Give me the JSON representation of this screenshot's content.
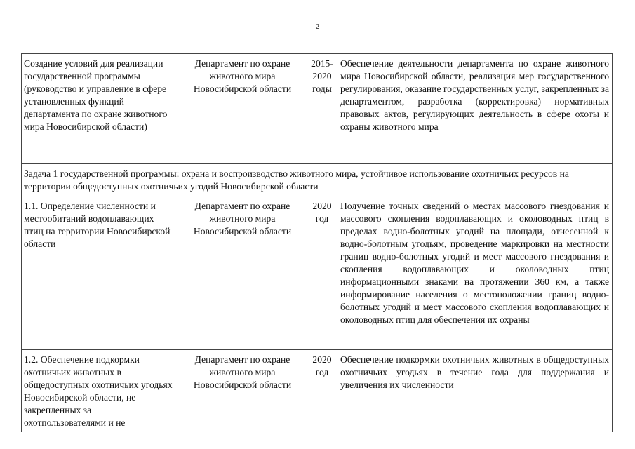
{
  "page_number": "2",
  "rows": [
    {
      "type": "item",
      "name": "Создание условий для реализации государственной программы (руководство и управление в сфере установленных функций департамента по охране животного мира Новосибирской области)",
      "executor": "Департамент по охране животного мира Новосибирской области",
      "period": "2015-2020 годы",
      "result": "Обеспечение деятельности департамента по охране животного мира Новосибирской области, реализация мер государственного регулирования, оказание государственных услуг, закрепленных за департаментом, разработка (корректировка) нормативных правовых актов, регулирующих деятельность в сфере охоты и охраны животного мира"
    },
    {
      "type": "task",
      "text": "Задача 1 государственной программы: охрана и воспроизводство животного мира, устойчивое использование охотничьих ресурсов на территории общедоступных охотничьих угодий Новосибирской области"
    },
    {
      "type": "item",
      "name": "1.1. Определение численности и местообитаний водоплавающих птиц на территории Новосибирской области",
      "executor": "Департамент по охране животного мира Новосибирской области",
      "period": "2020 год",
      "result": "Получение точных сведений о местах массового гнездования и массового скопления водоплавающих и околоводных птиц в пределах водно-болотных угодий на площади, отнесенной к водно-болотным угодьям, проведение маркировки на местности границ водно-болотных угодий и мест массового гнездования и скопления водоплавающих и околоводных птиц информационными знаками на протяжении 360 км, а также информирование населения о местоположении границ водно-болотных угодий и мест массового скопления водоплавающих и околоводных птиц для обеспечения их охраны"
    },
    {
      "type": "item",
      "name": "1.2. Обеспечение подкормки охотничьих животных в общедоступных охотничьих угодьях Новосибирской области, не закрепленных за охотпользователями и не",
      "executor": "Департамент по охране животного мира Новосибирской области",
      "period": "2020 год",
      "result": "Обеспечение подкормки охотничьих животных в общедоступных охотничьих угодьях в течение года для поддержания и увеличения их численности"
    }
  ]
}
